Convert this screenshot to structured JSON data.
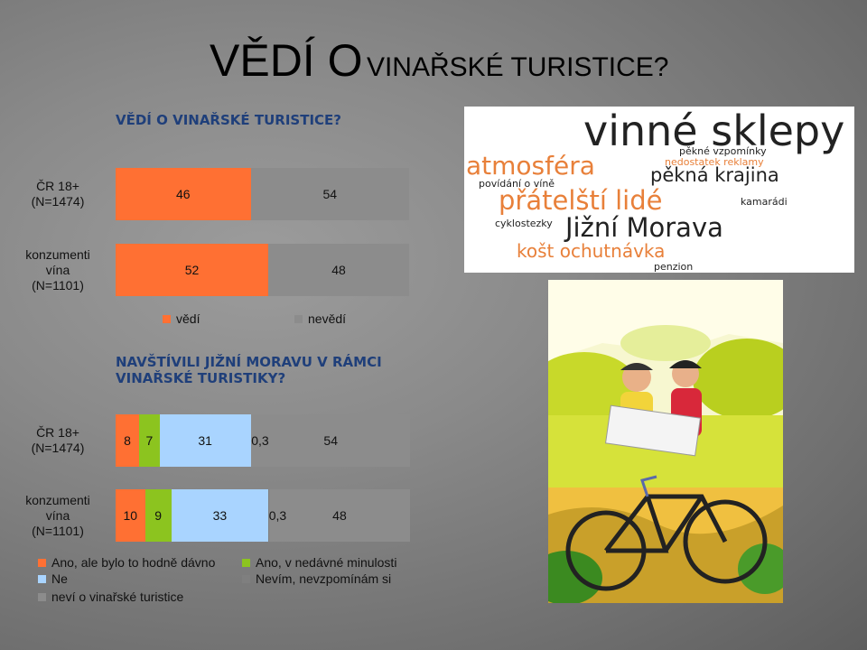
{
  "slide": {
    "title_big": "VĚDÍ O",
    "title_small": "VINAŘSKÉ TURISTICE?"
  },
  "chart_data": [
    {
      "type": "bar",
      "orientation": "horizontal-stacked",
      "title": "VĚDÍ O VINAŘSKÉ TURISTICE?",
      "categories": [
        "ČR 18+ (N=1474)",
        "konzumenti vína (N=1101)"
      ],
      "category_lines": [
        [
          "ČR 18+",
          "(N=1474)"
        ],
        [
          "konzumenti",
          "vína",
          "(N=1101)"
        ]
      ],
      "series": [
        {
          "name": "vědí",
          "color": "#ff7033",
          "values": [
            46,
            52
          ],
          "labels": [
            "46",
            "52"
          ]
        },
        {
          "name": "nevědí",
          "color": "#8c8c8c",
          "values": [
            54,
            48
          ],
          "labels": [
            "54",
            "48"
          ]
        }
      ],
      "xlim": [
        0,
        100
      ],
      "legend": "bottom"
    },
    {
      "type": "bar",
      "orientation": "horizontal-stacked",
      "title": "NAVŠTÍVILI JIŽNÍ MORAVU V RÁMCI VINAŘSKÉ TURISTIKY?",
      "categories": [
        "ČR 18+ (N=1474)",
        "konzumenti vína (N=1101)"
      ],
      "category_lines": [
        [
          "ČR 18+",
          "(N=1474)"
        ],
        [
          "konzumenti",
          "vína",
          "(N=1101)"
        ]
      ],
      "series": [
        {
          "name": "Ano, ale bylo to hodně dávno",
          "color": "#ff7033",
          "values": [
            8,
            10
          ],
          "labels": [
            "8",
            "10"
          ]
        },
        {
          "name": "Ano, v nedávné minulosti",
          "color": "#8cc41f",
          "values": [
            7,
            9
          ],
          "labels": [
            "7",
            "9"
          ]
        },
        {
          "name": "Ne",
          "color": "#a9d4ff",
          "values": [
            31,
            33
          ],
          "labels": [
            "31",
            "33"
          ]
        },
        {
          "name": "Nevím, nevzpomínám si",
          "color": "#7f7f7f",
          "values": [
            0.3,
            0.3
          ],
          "labels": [
            "0,3",
            "0,3"
          ]
        },
        {
          "name": "neví o vinařské turistice",
          "color": "#8c8c8c",
          "values": [
            54,
            48
          ],
          "labels": [
            "54",
            "48"
          ]
        }
      ],
      "xlim": [
        0,
        100
      ],
      "legend": "bottom"
    }
  ],
  "wordcloud": {
    "words": [
      {
        "text": "vinné sklepy",
        "color": "#222222"
      },
      {
        "text": "pěkné vzpomínky",
        "color": "#222222"
      },
      {
        "text": "nedostatek reklamy",
        "color": "#e8803a"
      },
      {
        "text": "atmosféra",
        "color": "#e8803a"
      },
      {
        "text": "pěkná krajina",
        "color": "#222222"
      },
      {
        "text": "povídání o víně",
        "color": "#222222"
      },
      {
        "text": "přátelští lidé",
        "color": "#e8803a"
      },
      {
        "text": "kamarádi",
        "color": "#222222"
      },
      {
        "text": "cyklostezky",
        "color": "#222222"
      },
      {
        "text": "Jižní Morava",
        "color": "#222222"
      },
      {
        "text": "košt ochutnávka",
        "color": "#e8803a"
      },
      {
        "text": "penzion",
        "color": "#222222"
      }
    ]
  },
  "photo": {
    "icon": "cyclists-photo-icon"
  }
}
